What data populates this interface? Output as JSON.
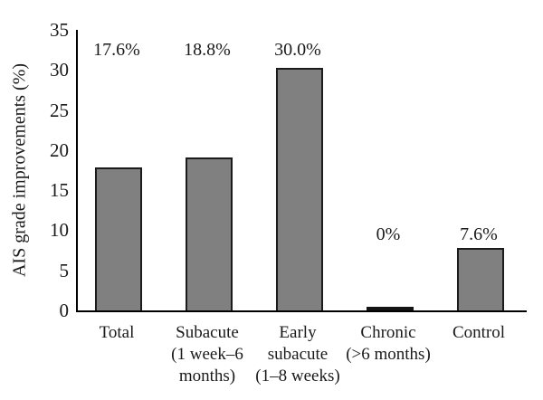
{
  "figure": {
    "background": "#ffffff",
    "text_color": "#1a1a1a",
    "axis_color": "#000000"
  },
  "chart_data": {
    "type": "bar",
    "title": "",
    "xlabel": "",
    "ylabel": "AIS grade improvements (%)",
    "ylim": [
      0,
      35
    ],
    "yticks": [
      0,
      5,
      10,
      15,
      20,
      25,
      30,
      35
    ],
    "grid": false,
    "legend": false,
    "bar_color": "#808080",
    "bar_border_color": "#1c1c1c",
    "categories": [
      "Total",
      "Subacute (1 week–6 months)",
      "Early subacute (1–8 weeks)",
      "Chronic (>6 months)",
      "Control"
    ],
    "category_lines": [
      [
        "Total"
      ],
      [
        "Subacute",
        "(1 week–6",
        "months)"
      ],
      [
        "Early",
        "subacute",
        "(1–8 weeks)"
      ],
      [
        "Chronic",
        "(>6 months)"
      ],
      [
        "Control"
      ]
    ],
    "values": [
      17.6,
      18.8,
      30.0,
      0,
      7.6
    ],
    "value_labels": [
      "17.6%",
      "18.8%",
      "30.0%",
      "0%",
      "7.6%"
    ],
    "value_label_band": [
      "upper",
      "upper",
      "upper",
      "lower",
      "lower"
    ]
  }
}
